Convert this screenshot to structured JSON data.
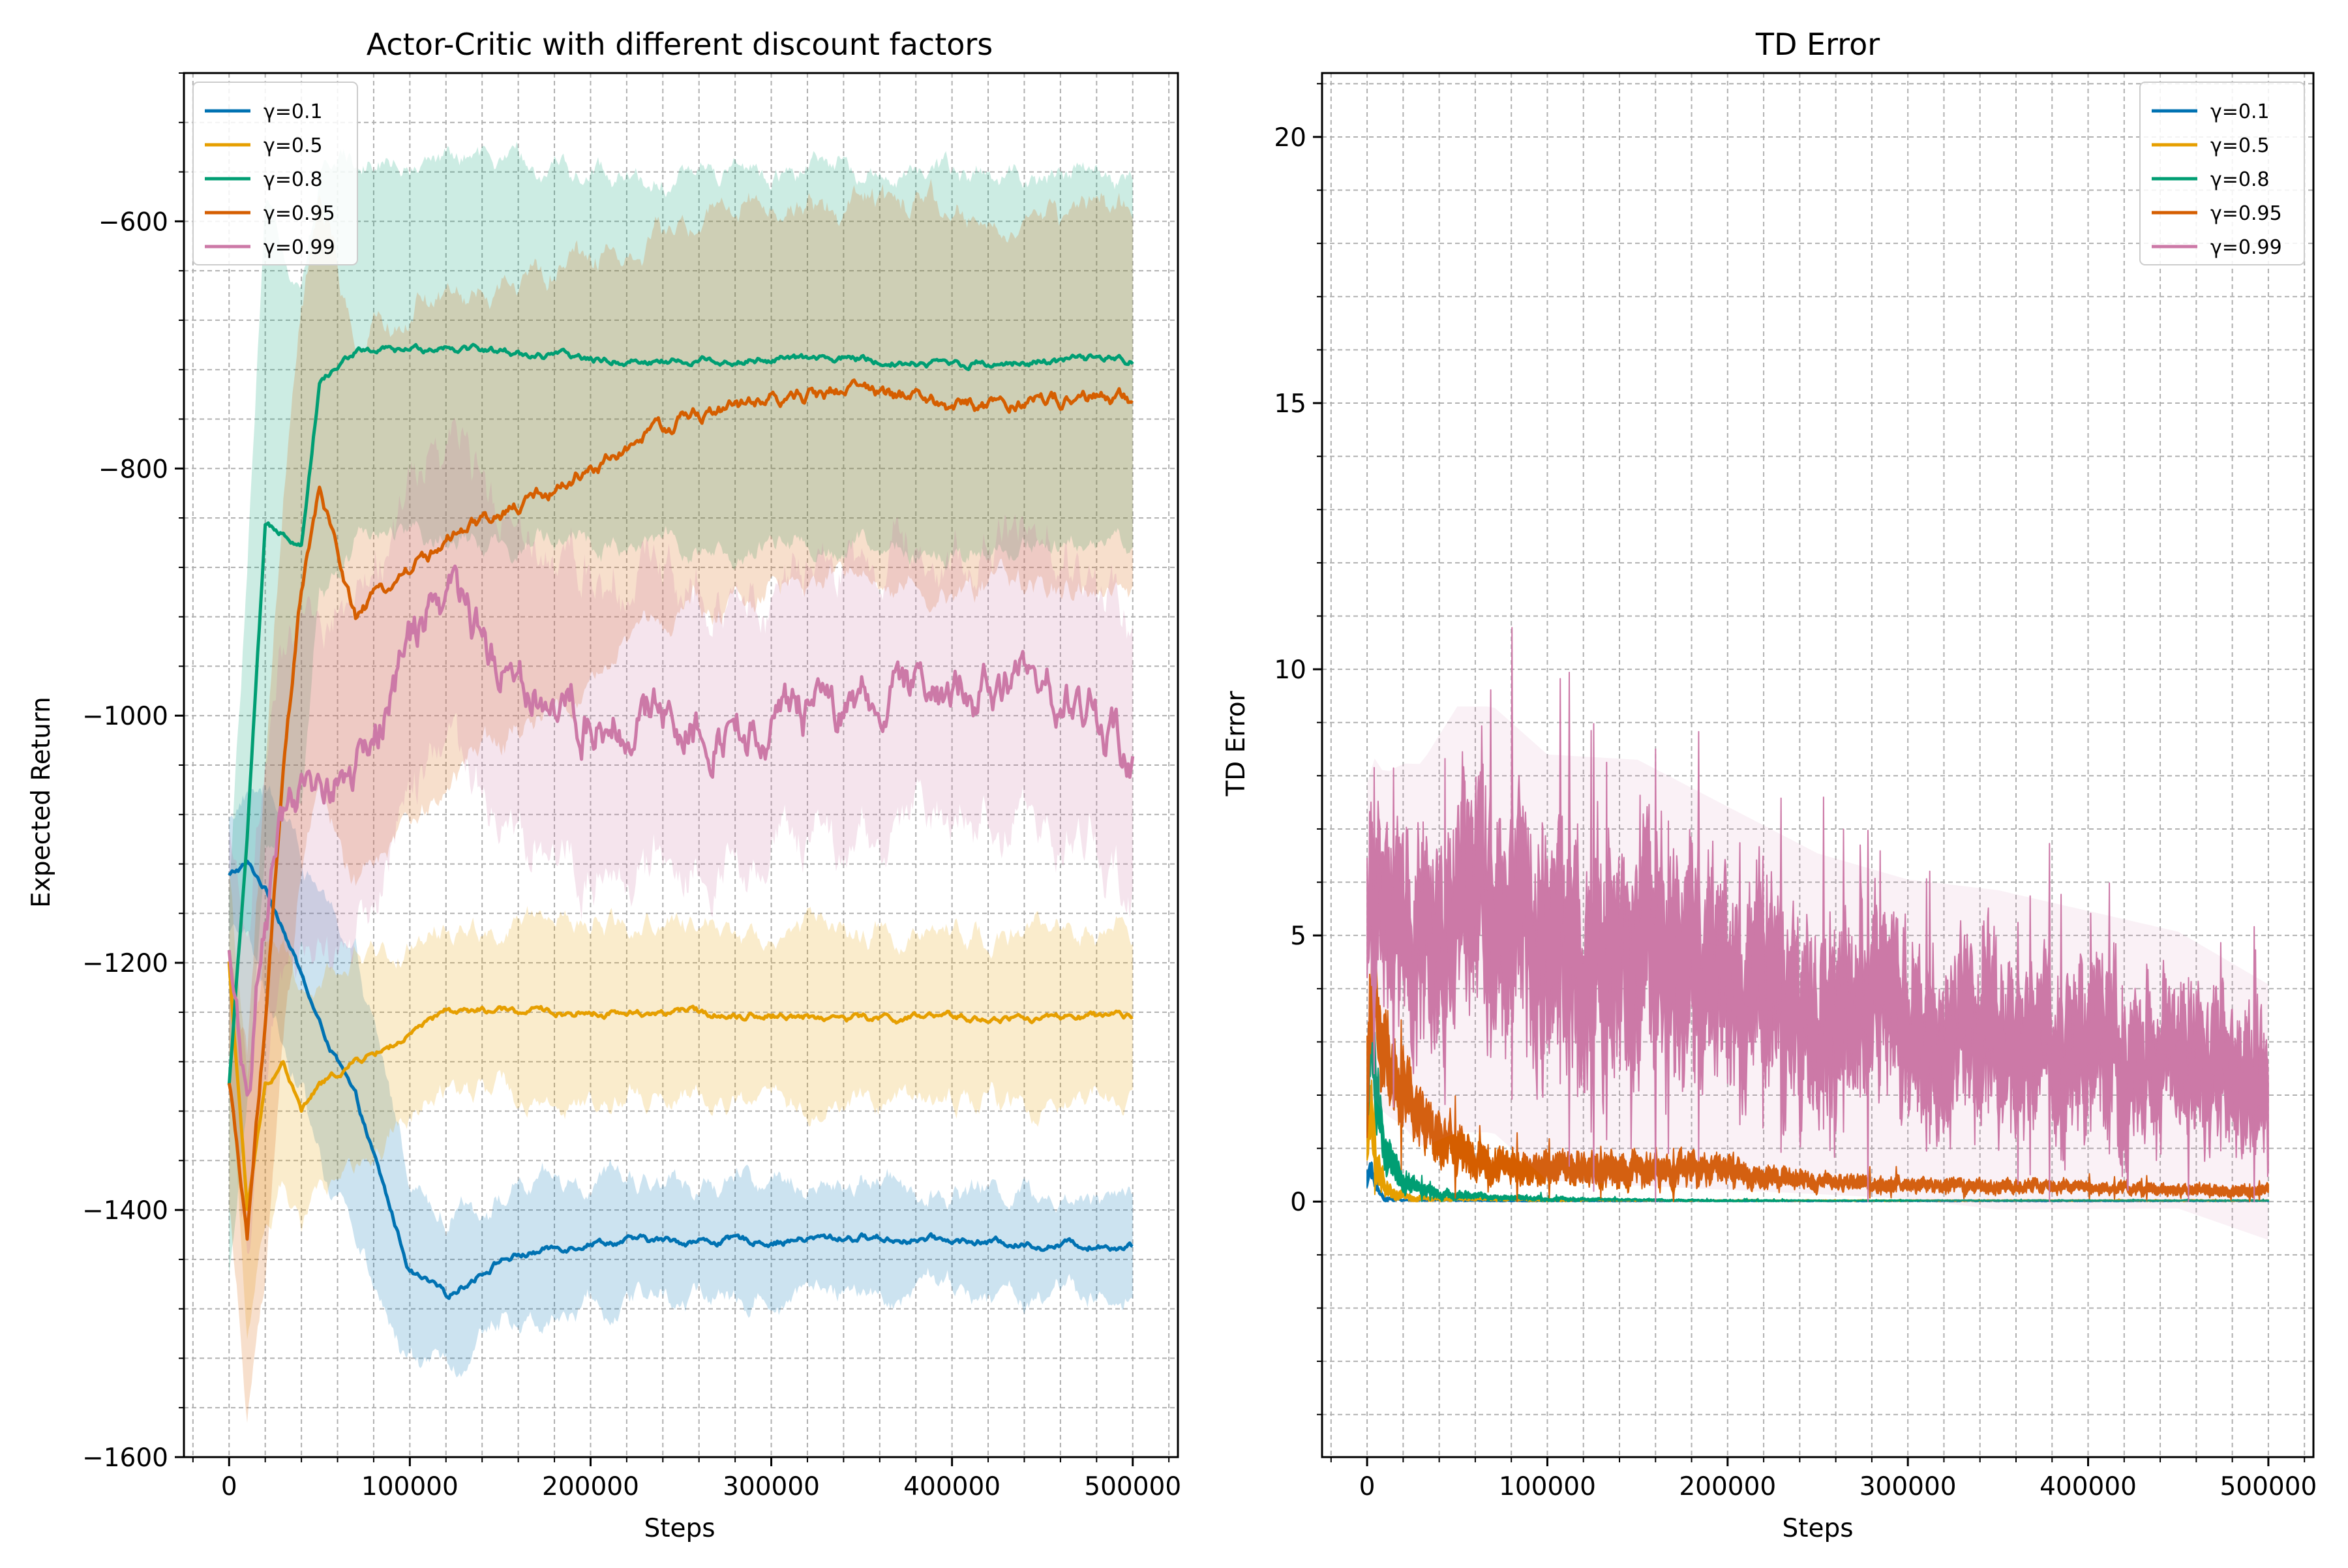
{
  "chart_data": [
    {
      "type": "line",
      "title": "Actor-Critic with different discount factors",
      "xlabel": "Steps",
      "ylabel": "Expected Return",
      "xlim": [
        -25000,
        525000
      ],
      "ylim": [
        -1600,
        -480
      ],
      "x_ticks": [
        0,
        100000,
        200000,
        300000,
        400000,
        500000
      ],
      "x_tick_labels": [
        "0",
        "100000",
        "200000",
        "300000",
        "400000",
        "500000"
      ],
      "y_ticks": [
        -1600,
        -1400,
        -1200,
        -1000,
        -800,
        -600
      ],
      "y_tick_labels": [
        "−1600",
        "−1400",
        "−1200",
        "−1000",
        "−800",
        "−600"
      ],
      "grid": true,
      "legend_position": "upper-left",
      "shaded_band": true,
      "x": [
        0,
        10000,
        20000,
        30000,
        40000,
        50000,
        70000,
        100000,
        120000,
        150000,
        200000,
        250000,
        300000,
        350000,
        400000,
        450000,
        500000
      ],
      "series": [
        {
          "name": "γ=0.1",
          "color": "#0072b2",
          "values": [
            -1130,
            -1120,
            -1140,
            -1170,
            -1210,
            -1250,
            -1310,
            -1450,
            -1470,
            -1440,
            -1425,
            -1425,
            -1425,
            -1422,
            -1425,
            -1428,
            -1428
          ],
          "band": [
            50,
            60,
            80,
            90,
            100,
            110,
            110,
            80,
            70,
            50,
            45,
            45,
            45,
            45,
            45,
            45,
            45
          ]
        },
        {
          "name": "γ=0.5",
          "color": "#e69f00",
          "values": [
            -1200,
            -1400,
            -1300,
            -1280,
            -1320,
            -1300,
            -1280,
            -1260,
            -1240,
            -1240,
            -1240,
            -1240,
            -1242,
            -1245,
            -1245,
            -1245,
            -1245
          ],
          "band": [
            80,
            100,
            100,
            90,
            90,
            80,
            80,
            70,
            70,
            70,
            70,
            70,
            70,
            70,
            70,
            70,
            70
          ]
        },
        {
          "name": "γ=0.8",
          "color": "#009e73",
          "values": [
            -1300,
            -1100,
            -850,
            -850,
            -860,
            -730,
            -705,
            -705,
            -700,
            -705,
            -712,
            -713,
            -712,
            -712,
            -715,
            -713,
            -712
          ],
          "band": [
            150,
            220,
            250,
            230,
            200,
            170,
            160,
            155,
            150,
            150,
            150,
            150,
            150,
            150,
            150,
            150,
            150
          ]
        },
        {
          "name": "γ=0.95",
          "color": "#d55e00",
          "values": [
            -1300,
            -1420,
            -1250,
            -1050,
            -900,
            -820,
            -920,
            -880,
            -860,
            -840,
            -800,
            -760,
            -745,
            -735,
            -750,
            -745,
            -745
          ],
          "band": [
            100,
            150,
            200,
            220,
            230,
            230,
            220,
            210,
            200,
            190,
            170,
            160,
            150,
            150,
            150,
            150,
            150
          ]
        },
        {
          "name": "γ=0.99",
          "color": "#cc79a7",
          "values": [
            -1200,
            -1300,
            -1150,
            -1100,
            -1080,
            -1050,
            -1050,
            -950,
            -900,
            -950,
            -1000,
            -1000,
            -1010,
            -990,
            -980,
            -970,
            -1025
          ],
          "band": [
            100,
            120,
            120,
            130,
            130,
            140,
            140,
            140,
            130,
            130,
            120,
            120,
            110,
            110,
            110,
            110,
            110
          ]
        }
      ]
    },
    {
      "type": "line",
      "title": "TD Error",
      "xlabel": "Steps",
      "ylabel": "TD Error",
      "xlim": [
        -25000,
        525000
      ],
      "ylim": [
        -4.8,
        21.2
      ],
      "x_ticks": [
        0,
        100000,
        200000,
        300000,
        400000,
        500000
      ],
      "x_tick_labels": [
        "0",
        "100000",
        "200000",
        "300000",
        "400000",
        "500000"
      ],
      "y_ticks": [
        0,
        5,
        10,
        15,
        20
      ],
      "y_tick_labels": [
        "0",
        "5",
        "10",
        "15",
        "20"
      ],
      "grid": true,
      "legend_position": "upper-right",
      "x": [
        0,
        2000,
        5000,
        10000,
        20000,
        30000,
        50000,
        70000,
        100000,
        150000,
        200000,
        250000,
        300000,
        350000,
        400000,
        450000,
        500000
      ],
      "series": [
        {
          "name": "γ=0.1",
          "color": "#0072b2",
          "values": [
            0.4,
            0.6,
            0.3,
            0.05,
            0.03,
            0.02,
            0.02,
            0.01,
            0.01,
            0.01,
            0.01,
            0.01,
            0.01,
            0.01,
            0.01,
            0.01,
            0.01
          ],
          "noise": [
            0.2,
            0.2,
            0.1,
            0.05,
            0.02,
            0.01,
            0.01,
            0.01,
            0.01,
            0.01,
            0.01,
            0.01,
            0.01,
            0.01,
            0.01,
            0.01,
            0.01
          ]
        },
        {
          "name": "γ=0.5",
          "color": "#e69f00",
          "values": [
            1.0,
            1.8,
            0.8,
            0.25,
            0.1,
            0.06,
            0.05,
            0.04,
            0.03,
            0.02,
            0.02,
            0.02,
            0.02,
            0.02,
            0.02,
            0.02,
            0.02
          ],
          "noise": [
            0.5,
            0.6,
            0.4,
            0.15,
            0.08,
            0.05,
            0.03,
            0.02,
            0.02,
            0.01,
            0.01,
            0.01,
            0.01,
            0.01,
            0.01,
            0.01,
            0.01
          ]
        },
        {
          "name": "γ=0.8",
          "color": "#009e73",
          "values": [
            1.5,
            3.0,
            2.0,
            0.8,
            0.35,
            0.2,
            0.12,
            0.08,
            0.05,
            0.03,
            0.02,
            0.02,
            0.02,
            0.02,
            0.02,
            0.02,
            0.02
          ],
          "noise": [
            0.8,
            0.9,
            0.7,
            0.4,
            0.2,
            0.12,
            0.08,
            0.05,
            0.04,
            0.02,
            0.02,
            0.01,
            0.01,
            0.01,
            0.01,
            0.01,
            0.01
          ]
        },
        {
          "name": "γ=0.95",
          "color": "#d55e00",
          "values": [
            2.0,
            3.5,
            3.5,
            2.8,
            2.0,
            1.5,
            1.0,
            0.7,
            0.6,
            0.6,
            0.55,
            0.35,
            0.3,
            0.28,
            0.25,
            0.22,
            0.2
          ],
          "noise": [
            1.0,
            1.0,
            0.9,
            0.8,
            0.6,
            0.5,
            0.4,
            0.3,
            0.3,
            0.3,
            0.25,
            0.15,
            0.12,
            0.12,
            0.1,
            0.1,
            0.1
          ]
        },
        {
          "name": "γ=0.99",
          "color": "#cc79a7",
          "values": [
            5.0,
            5.5,
            5.2,
            5.0,
            5.0,
            4.8,
            5.5,
            5.5,
            4.6,
            4.5,
            4.0,
            3.5,
            3.2,
            3.0,
            2.8,
            2.6,
            1.8
          ],
          "noise": [
            1.5,
            1.6,
            1.6,
            1.6,
            1.7,
            1.8,
            2.0,
            2.0,
            2.0,
            2.0,
            1.8,
            1.6,
            1.5,
            1.5,
            1.4,
            1.3,
            1.2
          ]
        }
      ]
    }
  ]
}
